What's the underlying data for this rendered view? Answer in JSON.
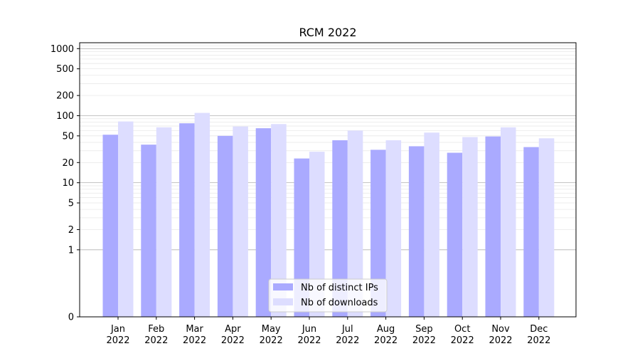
{
  "chart_data": {
    "type": "bar",
    "title": "RCM 2022",
    "xlabel": "",
    "ylabel": "",
    "y_scale": "symlog",
    "y_ticks": [
      0,
      1,
      2,
      5,
      10,
      20,
      50,
      100,
      200,
      500,
      1000
    ],
    "y_tick_labels": [
      "0",
      "1",
      "2",
      "5",
      "10",
      "20",
      "50",
      "100",
      "200",
      "500",
      "1000"
    ],
    "categories": [
      [
        "Jan",
        "2022"
      ],
      [
        "Feb",
        "2022"
      ],
      [
        "Mar",
        "2022"
      ],
      [
        "Apr",
        "2022"
      ],
      [
        "May",
        "2022"
      ],
      [
        "Jun",
        "2022"
      ],
      [
        "Jul",
        "2022"
      ],
      [
        "Aug",
        "2022"
      ],
      [
        "Sep",
        "2022"
      ],
      [
        "Oct",
        "2022"
      ],
      [
        "Nov",
        "2022"
      ],
      [
        "Dec",
        "2022"
      ]
    ],
    "series": [
      {
        "name": "Nb of distinct IPs",
        "color": "#aaaaff",
        "values": [
          52,
          37,
          77,
          50,
          65,
          23,
          43,
          31,
          35,
          28,
          49,
          34
        ]
      },
      {
        "name": "Nb of downloads",
        "color": "#ddddff",
        "values": [
          82,
          67,
          110,
          69,
          75,
          29,
          60,
          43,
          56,
          48,
          67,
          46
        ]
      }
    ],
    "legend_position": "lower-center",
    "grid": true
  }
}
